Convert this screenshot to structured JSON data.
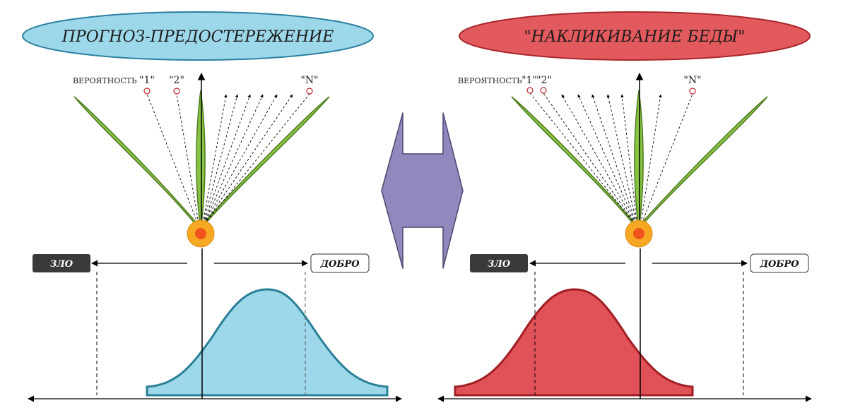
{
  "left_panel": {
    "title": "ПРОГНОЗ-ПРЕДОСТЕРЕЖЕНИЕ",
    "probability_label": "ВЕРОЯТНОСТЬ",
    "marker_1": "\"1\"",
    "marker_2": "\"2\"",
    "marker_n": "\"N\"",
    "evil_label": "ЗЛО",
    "good_label": "ДОБРО",
    "title_fill": "#9dd8ea",
    "title_stroke": "#2d7fa0",
    "curve_fill": "#9dd8ea",
    "curve_stroke": "#2a7f98"
  },
  "right_panel": {
    "title": "\"НАКЛИКИВАНИЕ БЕДЫ\"",
    "probability_label": "ВЕРОЯТНОСТЬ",
    "marker_1": "\"1\"",
    "marker_2": "\"2\"",
    "marker_n": "\"N\"",
    "evil_label": "ЗЛО",
    "good_label": "ДОБРО",
    "title_fill": "#e35a5e",
    "title_stroke": "#a8262b",
    "curve_fill": "#e05257",
    "curve_stroke": "#a01e24"
  },
  "colors": {
    "leaf": "#86c442",
    "leaf_stroke": "#4f7a21",
    "center_outer": "#f7a823",
    "center_inner": "#f0541c",
    "connector": "#9089bd",
    "evil_box": "#3a3a3a"
  },
  "icons": {
    "connector": "double-arrow-icon"
  }
}
